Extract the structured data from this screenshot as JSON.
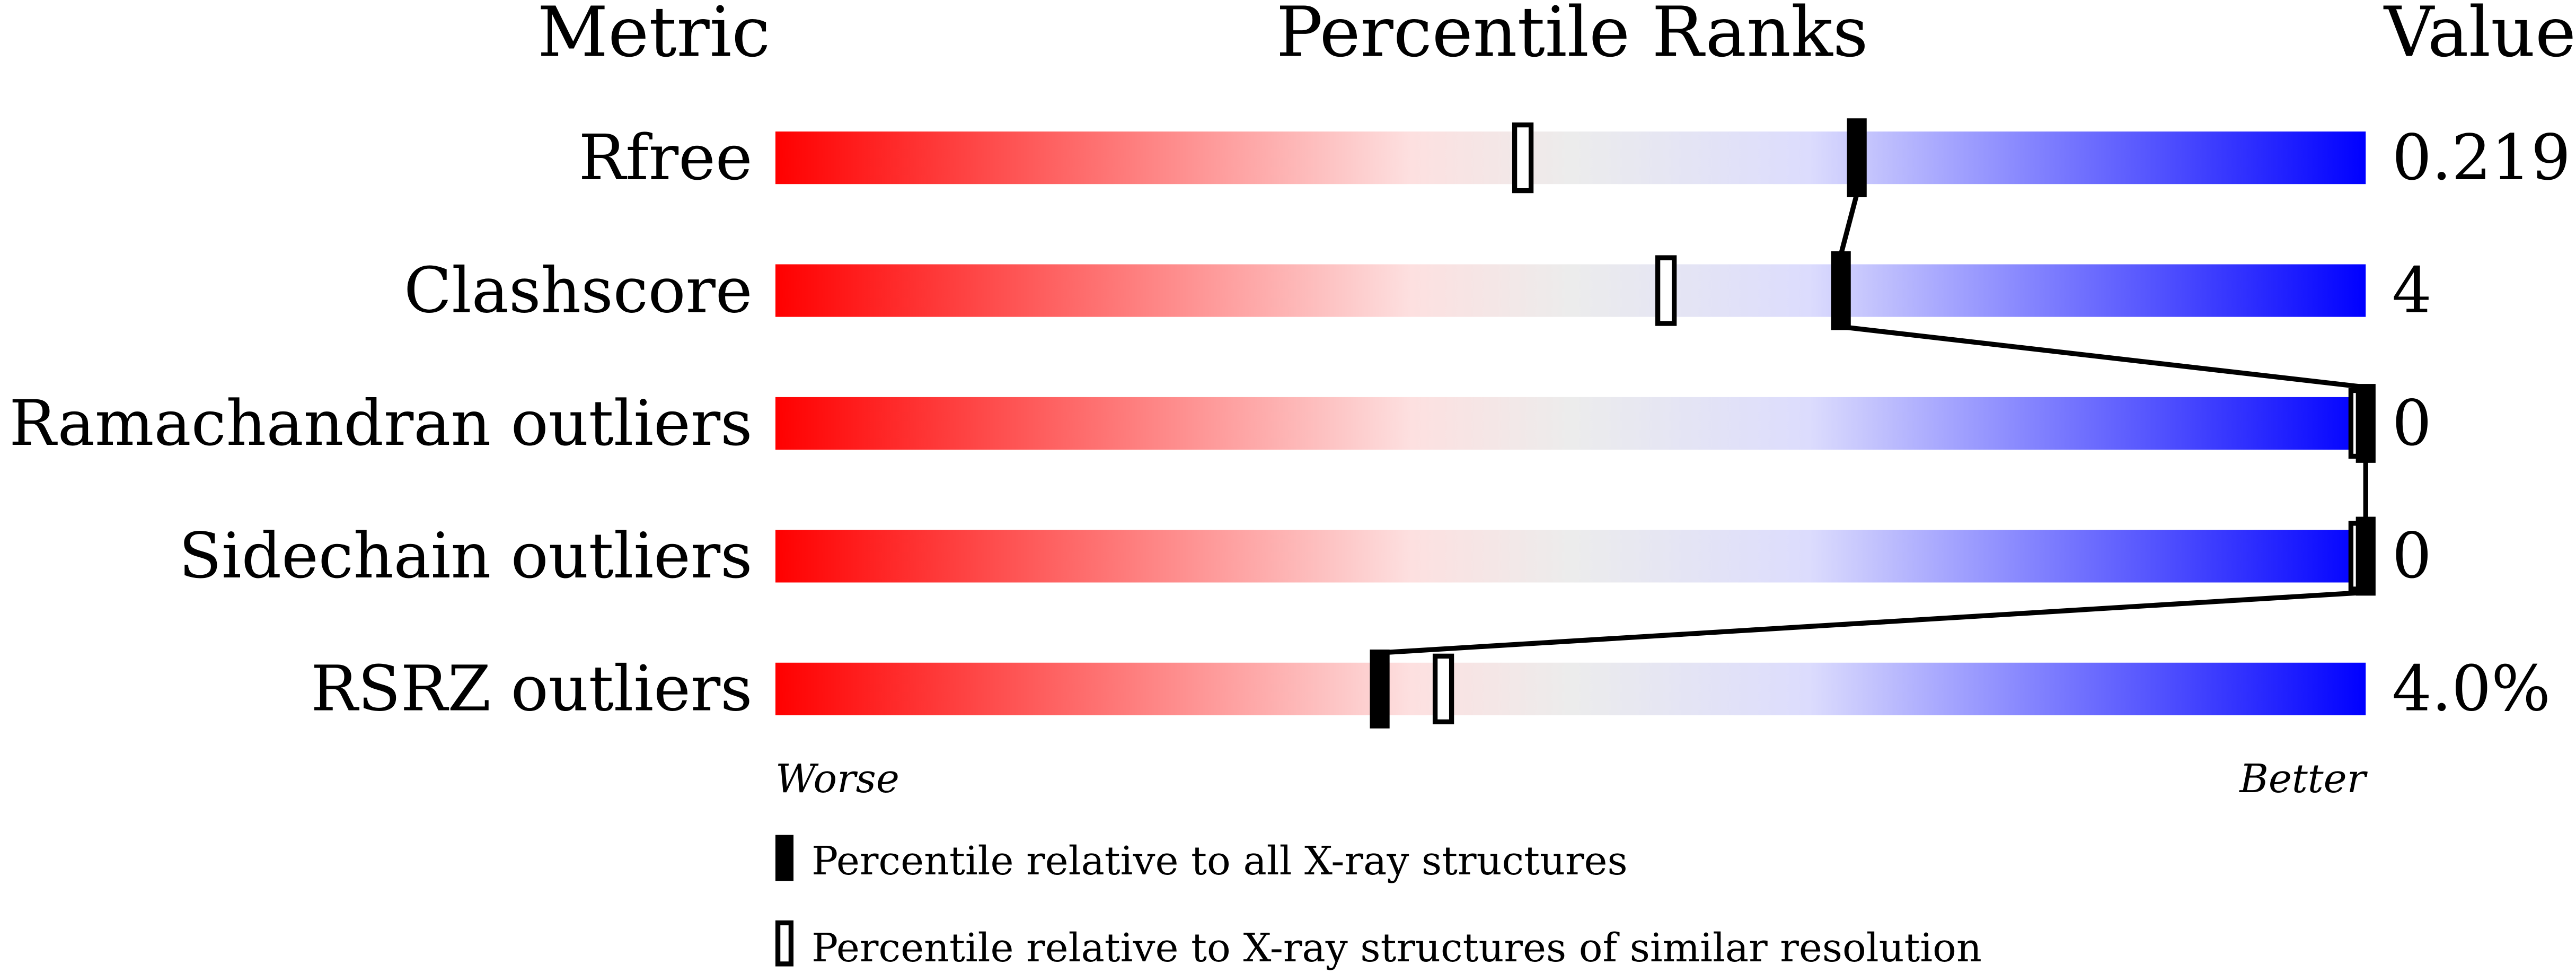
{
  "chart_data": {
    "type": "slider",
    "headers": {
      "metric": "Metric",
      "ranks": "Percentile Ranks",
      "value": "Value"
    },
    "axis": {
      "left_label": "Worse",
      "right_label": "Better",
      "range": [
        0,
        100
      ]
    },
    "gradient_colors": [
      "#ff0000",
      "#fde0e0",
      "#ececec",
      "#dcdcfd",
      "#0000ff"
    ],
    "metrics": [
      {
        "name": "Rfree",
        "value": "0.219",
        "percentile_all": 68,
        "percentile_similar": 47
      },
      {
        "name": "Clashscore",
        "value": "4",
        "percentile_all": 67,
        "percentile_similar": 56
      },
      {
        "name": "Ramachandran outliers",
        "value": "0",
        "percentile_all": 100,
        "percentile_similar": 100
      },
      {
        "name": "Sidechain outliers",
        "value": "0",
        "percentile_all": 100,
        "percentile_similar": 100
      },
      {
        "name": "RSRZ outliers",
        "value": "4.0%",
        "percentile_all": 38,
        "percentile_similar": 42
      }
    ],
    "legend": {
      "all": "Percentile relative to all X-ray structures",
      "similar": "Percentile relative to X-ray structures of similar resolution"
    }
  }
}
